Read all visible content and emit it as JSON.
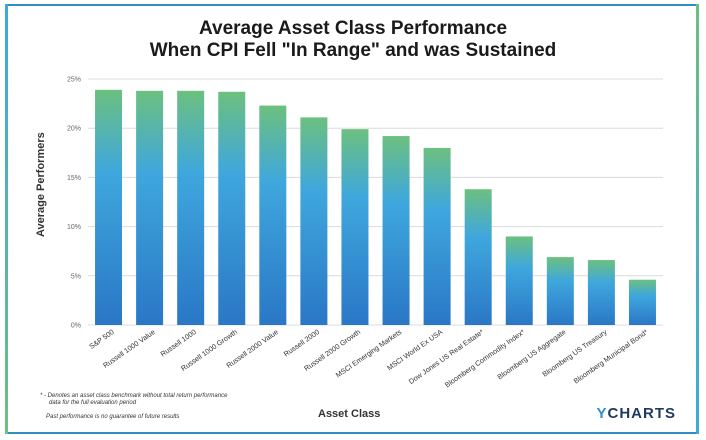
{
  "title_line1": "Average Asset Class Performance",
  "title_line2": "When CPI Fell \"In Range\" and was Sustained",
  "footnote_line1": "* - Denotes an asset class benchmark without total return performance",
  "footnote_line2": "data for the full evaluation period",
  "footnote_line3": "Past performance is no guarantee of future results",
  "logo_y": "Y",
  "logo_rest": "CHARTS",
  "colors": {
    "bar_top": "#6cc07f",
    "bar_mid": "#3fa7dd",
    "bar_bottom": "#2a77c6",
    "frame": "#2f8fc4"
  },
  "chart_data": {
    "type": "bar",
    "title": "Average Asset Class Performance When CPI Fell \"In Range\" and was Sustained",
    "xlabel": "Asset Class",
    "ylabel": "Average Performers",
    "ylim": [
      0,
      25
    ],
    "yticks": [
      "0%",
      "5%",
      "10%",
      "15%",
      "20%",
      "25%"
    ],
    "grid": true,
    "categories": [
      "S&P 500",
      "Russell 1000 Value",
      "Russell 1000",
      "Russell 1000 Growth",
      "Russell 2000 Value",
      "Russell 2000",
      "Russell 2000 Growth",
      "MSCI Emerging Markets",
      "MSCI World Ex USA",
      "Dow Jones US Real Estate*",
      "Bloomberg Commodity Index*",
      "Bloomberg US Aggregate",
      "Bloomberg US Treasury",
      "Bloomberg Municipal Bond*"
    ],
    "values": [
      23.9,
      23.8,
      23.8,
      23.7,
      22.3,
      21.1,
      19.9,
      19.2,
      18.0,
      13.8,
      9.0,
      6.9,
      6.6,
      4.6
    ]
  }
}
